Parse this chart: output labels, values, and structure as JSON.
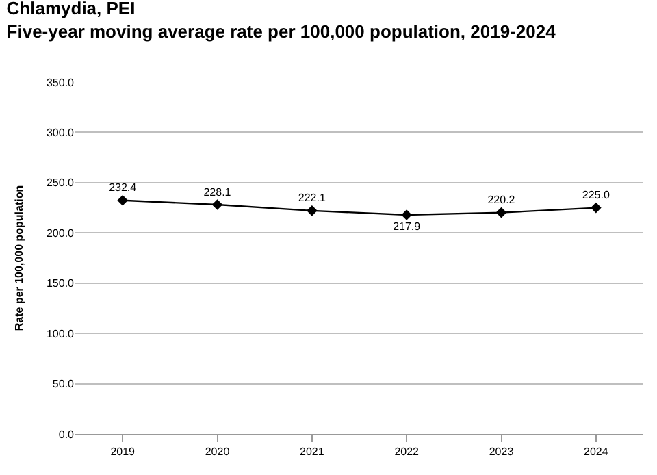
{
  "chart_data": {
    "type": "line",
    "title": "Chlamydia, PEI",
    "subtitle": "Five-year moving average rate per 100,000 population, 2019-2024",
    "ylabel": "Rate per 100,000 population",
    "categories": [
      "2019",
      "2020",
      "2021",
      "2022",
      "2023",
      "2024"
    ],
    "series": [
      {
        "color": "#000000",
        "values": [
          232.4,
          228.1,
          222.1,
          217.9,
          220.2,
          225.0
        ]
      }
    ],
    "value_labels": [
      "232.4",
      "228.1",
      "222.1",
      "217.9",
      "220.2",
      "225.0"
    ],
    "ylim": [
      0,
      350
    ],
    "yticks": [
      {
        "value": 0,
        "label": "0.0"
      },
      {
        "value": 50,
        "label": "50.0"
      },
      {
        "value": 100,
        "label": "100.0"
      },
      {
        "value": 150,
        "label": "150.0"
      },
      {
        "value": 200,
        "label": "200.0"
      },
      {
        "value": 250,
        "label": "250.0"
      },
      {
        "value": 300,
        "label": "300.0"
      },
      {
        "value": 350,
        "label": "350.0"
      }
    ],
    "grid": "y",
    "marker": "diamond",
    "line_style": "solid"
  }
}
